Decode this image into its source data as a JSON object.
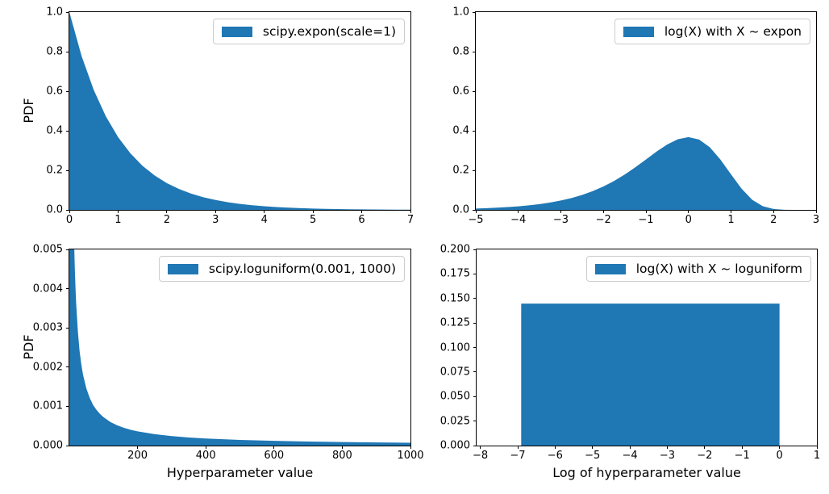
{
  "figure": {
    "accent_color": "#1f77b4",
    "spine_color": "#000000",
    "background": "#ffffff"
  },
  "chart_data": [
    {
      "id": "expon-pdf",
      "type": "area",
      "legend": "scipy.expon(scale=1)",
      "xlabel": "",
      "ylabel": "PDF",
      "grid": false,
      "legend_position": "upper right",
      "xlim": [
        0,
        7
      ],
      "ylim": [
        0,
        1.0
      ],
      "xtick_vals": [
        0,
        1,
        2,
        3,
        4,
        5,
        6,
        7
      ],
      "xtick_labels": [
        "0",
        "1",
        "2",
        "3",
        "4",
        "5",
        "6",
        "7"
      ],
      "ytick_vals": [
        0,
        0.2,
        0.4,
        0.6,
        0.8,
        1.0
      ],
      "ytick_labels": [
        "0.0",
        "0.2",
        "0.4",
        "0.6",
        "0.8",
        "1.0"
      ],
      "points": [
        [
          0,
          1.0
        ],
        [
          0.25,
          0.7788
        ],
        [
          0.5,
          0.6065
        ],
        [
          0.75,
          0.4724
        ],
        [
          1,
          0.3679
        ],
        [
          1.25,
          0.2865
        ],
        [
          1.5,
          0.2231
        ],
        [
          1.75,
          0.1738
        ],
        [
          2,
          0.1353
        ],
        [
          2.25,
          0.1054
        ],
        [
          2.5,
          0.0821
        ],
        [
          2.75,
          0.0639
        ],
        [
          3,
          0.0498
        ],
        [
          3.25,
          0.0388
        ],
        [
          3.5,
          0.0302
        ],
        [
          3.75,
          0.0235
        ],
        [
          4,
          0.0183
        ],
        [
          4.25,
          0.0143
        ],
        [
          4.5,
          0.0111
        ],
        [
          4.75,
          0.0087
        ],
        [
          5,
          0.0067
        ],
        [
          5.25,
          0.0052
        ],
        [
          5.5,
          0.0041
        ],
        [
          5.75,
          0.0032
        ],
        [
          6,
          0.0025
        ],
        [
          6.25,
          0.0019
        ],
        [
          6.5,
          0.0015
        ],
        [
          6.75,
          0.0012
        ],
        [
          7,
          0.0009
        ]
      ]
    },
    {
      "id": "log-expon-pdf",
      "type": "area",
      "legend": "log(X) with X ~ expon",
      "xlabel": "",
      "ylabel": "",
      "grid": false,
      "legend_position": "upper right",
      "xlim": [
        -5,
        3
      ],
      "ylim": [
        0,
        1.0
      ],
      "xtick_vals": [
        -5,
        -4,
        -3,
        -2,
        -1,
        0,
        1,
        2,
        3
      ],
      "xtick_labels": [
        "−5",
        "−4",
        "−3",
        "−2",
        "−1",
        "0",
        "1",
        "2",
        "3"
      ],
      "ytick_vals": [
        0,
        0.2,
        0.4,
        0.6,
        0.8,
        1.0
      ],
      "ytick_labels": [
        "0.0",
        "0.2",
        "0.4",
        "0.6",
        "0.8",
        "1.0"
      ],
      "points": [
        [
          -5,
          0.0067
        ],
        [
          -4.75,
          0.0086
        ],
        [
          -4.5,
          0.011
        ],
        [
          -4.25,
          0.0141
        ],
        [
          -4,
          0.018
        ],
        [
          -3.75,
          0.023
        ],
        [
          -3.5,
          0.0293
        ],
        [
          -3.25,
          0.0373
        ],
        [
          -3,
          0.0474
        ],
        [
          -2.75,
          0.0599
        ],
        [
          -2.5,
          0.0756
        ],
        [
          -2.25,
          0.0949
        ],
        [
          -2,
          0.1182
        ],
        [
          -1.75,
          0.1461
        ],
        [
          -1.5,
          0.1785
        ],
        [
          -1.25,
          0.2153
        ],
        [
          -1,
          0.2546
        ],
        [
          -0.75,
          0.2947
        ],
        [
          -0.5,
          0.3307
        ],
        [
          -0.25,
          0.3573
        ],
        [
          0,
          0.3679
        ],
        [
          0.25,
          0.3557
        ],
        [
          0.5,
          0.3167
        ],
        [
          0.75,
          0.2546
        ],
        [
          1,
          0.1794
        ],
        [
          1.25,
          0.1065
        ],
        [
          1.5,
          0.0507
        ],
        [
          1.75,
          0.0182
        ],
        [
          2,
          0.0046
        ],
        [
          2.25,
          0.0007
        ],
        [
          2.5,
          0.0001
        ],
        [
          2.75,
          0
        ],
        [
          3,
          0
        ]
      ]
    },
    {
      "id": "loguniform-pdf",
      "type": "area",
      "legend": "scipy.loguniform(0.001, 1000)",
      "xlabel": "Hyperparameter value",
      "ylabel": "PDF",
      "grid": false,
      "legend_position": "upper right",
      "xlim": [
        0,
        1000
      ],
      "ylim": [
        0,
        0.005
      ],
      "xtick_vals": [
        200,
        400,
        600,
        800,
        1000
      ],
      "xtick_labels": [
        "200",
        "400",
        "600",
        "800",
        "1000"
      ],
      "ytick_vals": [
        0,
        0.001,
        0.002,
        0.003,
        0.004,
        0.005
      ],
      "ytick_labels": [
        "0.000",
        "0.001",
        "0.002",
        "0.003",
        "0.004",
        "0.005"
      ],
      "points": [
        [
          0.001,
          0.005
        ],
        [
          14.48,
          0.005
        ],
        [
          16,
          0.00452
        ],
        [
          18,
          0.00402
        ],
        [
          20,
          0.00362
        ],
        [
          25,
          0.0029
        ],
        [
          30,
          0.00241
        ],
        [
          35,
          0.00207
        ],
        [
          40,
          0.00181
        ],
        [
          50,
          0.00145
        ],
        [
          60,
          0.00121
        ],
        [
          70,
          0.00103
        ],
        [
          80,
          0.000905
        ],
        [
          90,
          0.000804
        ],
        [
          100,
          0.000724
        ],
        [
          120,
          0.000603
        ],
        [
          140,
          0.000517
        ],
        [
          160,
          0.000452
        ],
        [
          180,
          0.000402
        ],
        [
          200,
          0.000362
        ],
        [
          250,
          0.00029
        ],
        [
          300,
          0.000241
        ],
        [
          350,
          0.000207
        ],
        [
          400,
          0.000181
        ],
        [
          450,
          0.000161
        ],
        [
          500,
          0.000145
        ],
        [
          600,
          0.000121
        ],
        [
          700,
          0.000103
        ],
        [
          800,
          9.05e-05
        ],
        [
          900,
          8.04e-05
        ],
        [
          1000,
          7.24e-05
        ]
      ]
    },
    {
      "id": "log-loguniform-pdf",
      "type": "area",
      "legend": "log(X) with X ~ loguniform",
      "xlabel": "Log of hyperparameter value",
      "ylabel": "",
      "grid": false,
      "legend_position": "upper right",
      "xlim": [
        -8.1,
        1
      ],
      "ylim": [
        0,
        0.2
      ],
      "xtick_vals": [
        -8,
        -7,
        -6,
        -5,
        -4,
        -3,
        -2,
        -1,
        0,
        1
      ],
      "xtick_labels": [
        "−8",
        "−7",
        "−6",
        "−5",
        "−4",
        "−3",
        "−2",
        "−1",
        "0",
        "1"
      ],
      "ytick_vals": [
        0,
        0.025,
        0.05,
        0.075,
        0.1,
        0.125,
        0.15,
        0.175,
        0.2
      ],
      "ytick_labels": [
        "0.000",
        "0.025",
        "0.050",
        "0.075",
        "0.100",
        "0.125",
        "0.150",
        "0.175",
        "0.200"
      ],
      "points": [
        [
          -6.907,
          0.1448
        ],
        [
          0,
          0.1448
        ]
      ]
    }
  ]
}
